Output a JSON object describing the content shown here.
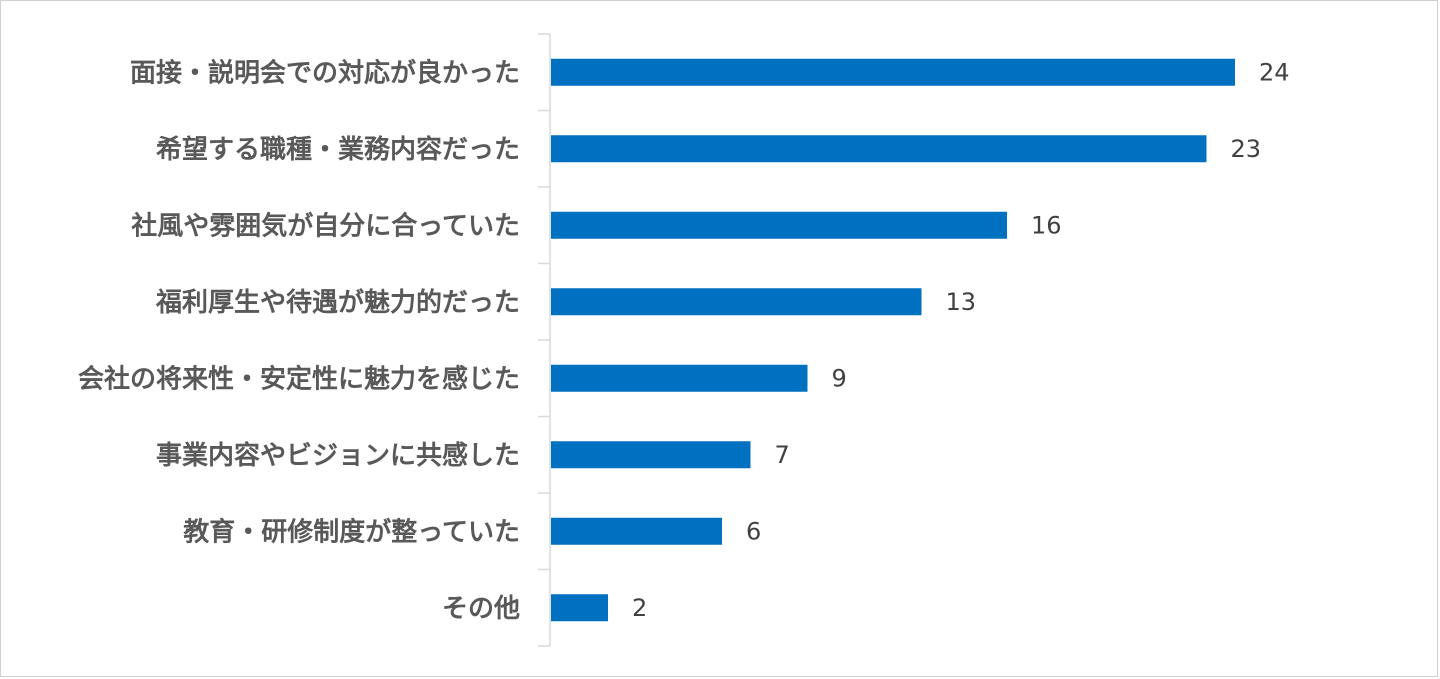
{
  "chart_data": {
    "type": "bar",
    "orientation": "horizontal",
    "categories": [
      "面接・説明会での対応が良かった",
      "希望する職種・業務内容だった",
      "社風や雰囲気が自分に合っていた",
      "福利厚生や待遇が魅力的だった",
      "会社の将来性・安定性に魅力を感じた",
      "事業内容やビジョンに共感した",
      "教育・研修制度が整っていた",
      "その他"
    ],
    "values": [
      24,
      23,
      16,
      13,
      9,
      7,
      6,
      2
    ],
    "title": "",
    "xlabel": "",
    "ylabel": "",
    "xlim": [
      0,
      25
    ],
    "grid": false,
    "legend": "none",
    "data_labels": true,
    "bar_color": "#0070C0",
    "axis_color": "#d9d9d9",
    "label_color": "#595959",
    "value_color": "#404040"
  }
}
